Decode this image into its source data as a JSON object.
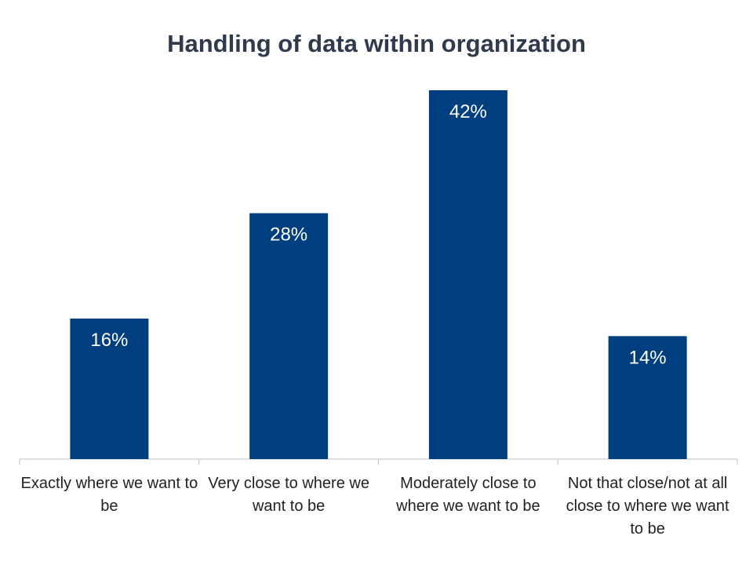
{
  "chart_data": {
    "type": "bar",
    "title": "Handling of data within organization",
    "categories": [
      "Exactly where we want to be",
      "Very close to where we want to be",
      "Moderately close to where we want to be",
      "Not that close/not at all close to where we want to be"
    ],
    "values": [
      16,
      28,
      42,
      14
    ],
    "data_labels": [
      "16%",
      "28%",
      "42%",
      "14%"
    ],
    "xlabel": "",
    "ylabel": "",
    "ylim": [
      0,
      42
    ],
    "grid": false,
    "legend": "none",
    "bar_color": "#003f7f",
    "label_color": "#ffffff"
  }
}
